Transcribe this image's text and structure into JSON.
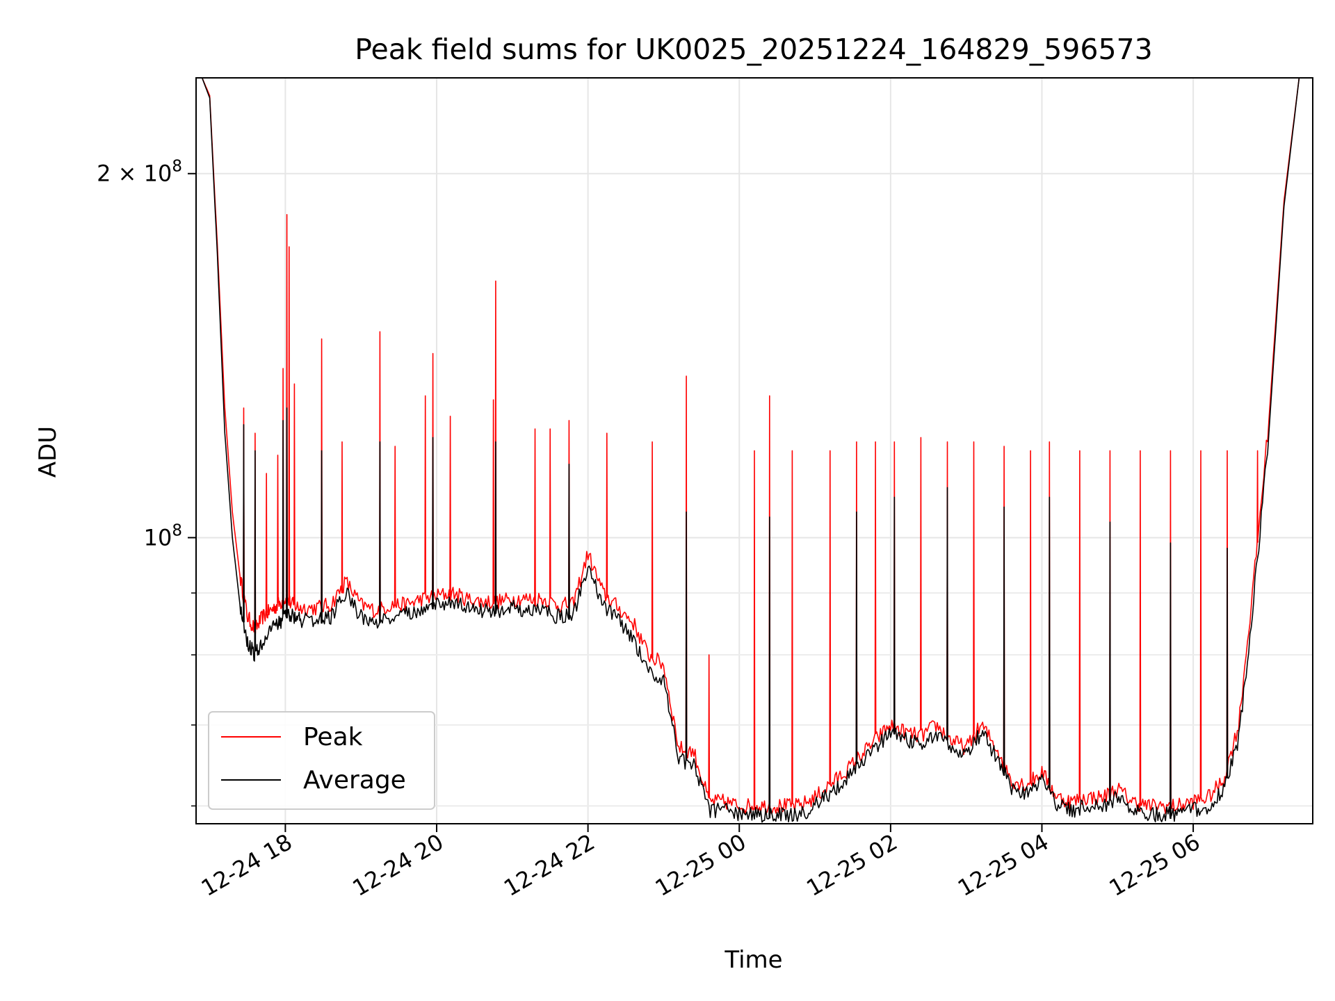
{
  "chart_data": {
    "type": "line",
    "title": "Peak field sums for UK0025_20251224_164829_596573",
    "xlabel": "Time",
    "ylabel": "ADU",
    "y_scale": "log",
    "ylim": [
      58000000,
      240000000
    ],
    "xlim_hours": [
      16.82,
      7.58
    ],
    "x_ticks": [
      {
        "hour": 18,
        "label": "12-24 18"
      },
      {
        "hour": 20,
        "label": "12-24 20"
      },
      {
        "hour": 22,
        "label": "12-24 22"
      },
      {
        "hour": 24,
        "label": "12-25 00"
      },
      {
        "hour": 26,
        "label": "12-25 02"
      },
      {
        "hour": 28,
        "label": "12-25 04"
      },
      {
        "hour": 30,
        "label": "12-25 06"
      }
    ],
    "y_ticks": [
      {
        "value": 100000000,
        "base": "10",
        "exp": "8",
        "coef": ""
      },
      {
        "value": 200000000,
        "base": "10",
        "exp": "8",
        "coef": "2 × "
      }
    ],
    "y_minor_ticks": [
      60000000,
      70000000,
      80000000,
      90000000
    ],
    "grid": true,
    "legend_position": "lower-left",
    "series": [
      {
        "name": "Peak",
        "color": "#ff0000",
        "x_hours": [
          16.82,
          16.9,
          17.0,
          17.1,
          17.2,
          17.3,
          17.4,
          17.5,
          17.6,
          17.7,
          17.8,
          17.9,
          18.0,
          18.1,
          18.2,
          18.4,
          18.6,
          18.8,
          19.0,
          19.2,
          19.4,
          19.6,
          19.8,
          20.0,
          20.2,
          20.4,
          20.6,
          20.8,
          21.0,
          21.2,
          21.4,
          21.6,
          21.8,
          22.0,
          22.2,
          22.4,
          22.6,
          22.8,
          23.0,
          23.2,
          23.4,
          23.6,
          23.8,
          24.0,
          24.2,
          24.4,
          24.6,
          24.8,
          25.0,
          25.2,
          25.4,
          25.6,
          25.8,
          26.0,
          26.2,
          26.4,
          26.6,
          26.8,
          27.0,
          27.2,
          27.4,
          27.6,
          27.8,
          28.0,
          28.2,
          28.4,
          28.6,
          28.8,
          29.0,
          29.2,
          29.4,
          29.6,
          29.8,
          30.0,
          30.2,
          30.4,
          30.6,
          30.8,
          31.0,
          31.2,
          31.4,
          31.58
        ],
        "values": [
          240000000,
          240000000,
          232000000,
          175000000,
          128000000,
          105000000,
          93000000,
          86000000,
          84000000,
          86000000,
          87000000,
          88000000,
          89000000,
          88000000,
          87500000,
          87500000,
          88000000,
          92000000,
          88000000,
          87000000,
          88000000,
          88000000,
          89000000,
          89500000,
          90000000,
          89000000,
          88500000,
          88500000,
          89000000,
          89000000,
          89000000,
          88000000,
          88000000,
          97000000,
          90000000,
          87500000,
          85000000,
          80000000,
          78500000,
          67000000,
          66500000,
          60500000,
          60500000,
          60000000,
          60000000,
          60000000,
          60000000,
          60000000,
          61000000,
          62500000,
          64000000,
          66000000,
          68000000,
          70000000,
          69000000,
          68500000,
          70000000,
          68000000,
          67000000,
          70000000,
          67000000,
          63000000,
          62500000,
          64000000,
          61000000,
          60500000,
          61000000,
          61000000,
          62000000,
          60500000,
          60000000,
          60000000,
          60000000,
          60500000,
          61000000,
          63000000,
          70000000,
          92000000,
          125000000,
          190000000,
          240000000,
          240000000
        ],
        "spikes": [
          {
            "hour": 17.45,
            "value": 128000000
          },
          {
            "hour": 17.6,
            "value": 122000000
          },
          {
            "hour": 17.75,
            "value": 113000000
          },
          {
            "hour": 17.9,
            "value": 117000000
          },
          {
            "hour": 17.97,
            "value": 138000000
          },
          {
            "hour": 18.02,
            "value": 185000000
          },
          {
            "hour": 18.05,
            "value": 174000000
          },
          {
            "hour": 18.12,
            "value": 134000000
          },
          {
            "hour": 18.48,
            "value": 146000000
          },
          {
            "hour": 18.75,
            "value": 120000000
          },
          {
            "hour": 19.25,
            "value": 148000000
          },
          {
            "hour": 19.45,
            "value": 119000000
          },
          {
            "hour": 19.85,
            "value": 131000000
          },
          {
            "hour": 19.95,
            "value": 142000000
          },
          {
            "hour": 20.18,
            "value": 126000000
          },
          {
            "hour": 20.75,
            "value": 130000000
          },
          {
            "hour": 20.78,
            "value": 163000000
          },
          {
            "hour": 21.3,
            "value": 123000000
          },
          {
            "hour": 21.5,
            "value": 123000000
          },
          {
            "hour": 21.75,
            "value": 125000000
          },
          {
            "hour": 22.25,
            "value": 122000000
          },
          {
            "hour": 22.85,
            "value": 120000000
          },
          {
            "hour": 23.3,
            "value": 136000000
          },
          {
            "hour": 23.6,
            "value": 80000000
          },
          {
            "hour": 24.2,
            "value": 118000000
          },
          {
            "hour": 24.4,
            "value": 131000000
          },
          {
            "hour": 24.7,
            "value": 118000000
          },
          {
            "hour": 25.2,
            "value": 118000000
          },
          {
            "hour": 25.55,
            "value": 120000000
          },
          {
            "hour": 25.8,
            "value": 120000000
          },
          {
            "hour": 26.05,
            "value": 120000000
          },
          {
            "hour": 26.4,
            "value": 121000000
          },
          {
            "hour": 26.75,
            "value": 120000000
          },
          {
            "hour": 27.1,
            "value": 120000000
          },
          {
            "hour": 27.5,
            "value": 119000000
          },
          {
            "hour": 27.85,
            "value": 118000000
          },
          {
            "hour": 28.1,
            "value": 120000000
          },
          {
            "hour": 28.5,
            "value": 118000000
          },
          {
            "hour": 28.9,
            "value": 118000000
          },
          {
            "hour": 29.3,
            "value": 118000000
          },
          {
            "hour": 29.7,
            "value": 118000000
          },
          {
            "hour": 30.1,
            "value": 118000000
          },
          {
            "hour": 30.45,
            "value": 118000000
          },
          {
            "hour": 30.85,
            "value": 118000000
          }
        ]
      },
      {
        "name": "Average",
        "color": "#000000",
        "x_hours": [
          16.82,
          16.9,
          17.0,
          17.1,
          17.2,
          17.3,
          17.4,
          17.5,
          17.6,
          17.7,
          17.8,
          17.9,
          18.0,
          18.1,
          18.2,
          18.4,
          18.6,
          18.8,
          19.0,
          19.2,
          19.4,
          19.6,
          19.8,
          20.0,
          20.2,
          20.4,
          20.6,
          20.8,
          21.0,
          21.2,
          21.4,
          21.6,
          21.8,
          22.0,
          22.2,
          22.4,
          22.6,
          22.8,
          23.0,
          23.2,
          23.4,
          23.6,
          23.8,
          24.0,
          24.2,
          24.4,
          24.6,
          24.8,
          25.0,
          25.2,
          25.4,
          25.6,
          25.8,
          26.0,
          26.2,
          26.4,
          26.6,
          26.8,
          27.0,
          27.2,
          27.4,
          27.6,
          27.8,
          28.0,
          28.2,
          28.4,
          28.6,
          28.8,
          29.0,
          29.2,
          29.4,
          29.6,
          29.8,
          30.0,
          30.2,
          30.4,
          30.6,
          30.8,
          31.0,
          31.2,
          31.4,
          31.58
        ],
        "values": [
          240000000,
          240000000,
          231000000,
          172000000,
          122000000,
          100000000,
          88000000,
          82000000,
          80000000,
          82000000,
          83500000,
          85000000,
          86000000,
          86000000,
          85500000,
          85500000,
          86000000,
          90000000,
          86000000,
          85000000,
          86000000,
          86500000,
          87500000,
          88000000,
          88500000,
          87500000,
          87000000,
          87000000,
          87500000,
          87000000,
          87000000,
          86000000,
          86000000,
          95000000,
          88000000,
          85500000,
          82500000,
          77500000,
          76500000,
          65500000,
          65000000,
          59500000,
          59500000,
          59000000,
          59000000,
          59000000,
          59000000,
          59000000,
          60000000,
          61500000,
          63000000,
          65000000,
          67000000,
          69000000,
          68000000,
          67500000,
          69000000,
          67000000,
          66000000,
          69000000,
          66000000,
          62000000,
          61500000,
          63000000,
          60000000,
          59500000,
          60000000,
          60000000,
          61000000,
          59500000,
          59000000,
          59000000,
          59000000,
          59500000,
          60000000,
          62000000,
          68000000,
          89000000,
          122000000,
          188000000,
          240000000,
          240000000
        ],
        "spikes": [
          {
            "hour": 17.45,
            "value": 124000000
          },
          {
            "hour": 17.6,
            "value": 118000000
          },
          {
            "hour": 17.97,
            "value": 125000000
          },
          {
            "hour": 18.02,
            "value": 128000000
          },
          {
            "hour": 18.48,
            "value": 118000000
          },
          {
            "hour": 19.25,
            "value": 120000000
          },
          {
            "hour": 19.95,
            "value": 121000000
          },
          {
            "hour": 20.78,
            "value": 120000000
          },
          {
            "hour": 21.75,
            "value": 115000000
          },
          {
            "hour": 23.3,
            "value": 105000000
          },
          {
            "hour": 24.4,
            "value": 104000000
          },
          {
            "hour": 25.55,
            "value": 105000000
          },
          {
            "hour": 26.05,
            "value": 108000000
          },
          {
            "hour": 26.75,
            "value": 110000000
          },
          {
            "hour": 27.5,
            "value": 106000000
          },
          {
            "hour": 28.1,
            "value": 108000000
          },
          {
            "hour": 28.9,
            "value": 103000000
          },
          {
            "hour": 29.7,
            "value": 99000000
          },
          {
            "hour": 30.45,
            "value": 98000000
          }
        ]
      }
    ],
    "notes_visible_only_in_plot": "dense narrow spikes and dips through the night"
  }
}
